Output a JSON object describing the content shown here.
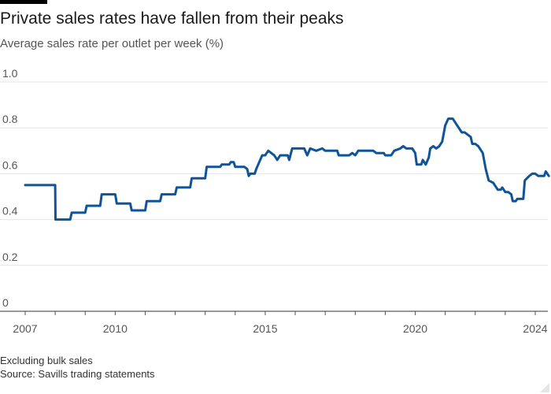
{
  "chart_data": {
    "type": "line",
    "title": "Private sales rates have fallen from their peaks",
    "subtitle": "Average sales rate per outlet per week (%)",
    "xlabel": "",
    "ylabel": "",
    "xlim": [
      2007,
      2024
    ],
    "ylim": [
      0,
      1.0
    ],
    "yticks": [
      0,
      0.2,
      0.4,
      0.6,
      0.8,
      1.0
    ],
    "ytick_labels": [
      "0",
      "0.2",
      "0.4",
      "0.6",
      "0.8",
      "1.0"
    ],
    "xticks": [
      2007,
      2010,
      2015,
      2020,
      2024
    ],
    "xtick_labels": [
      "2007",
      "2010",
      "2015",
      "2020",
      "2024"
    ],
    "grid": true,
    "line_color": "#0f5499",
    "series": [
      {
        "values": [
          [
            2007.0,
            0.55
          ],
          [
            2008.0,
            0.55
          ],
          [
            2008.01,
            0.4
          ],
          [
            2008.5,
            0.4
          ],
          [
            2008.55,
            0.43
          ],
          [
            2009.0,
            0.43
          ],
          [
            2009.05,
            0.46
          ],
          [
            2009.5,
            0.46
          ],
          [
            2009.55,
            0.51
          ],
          [
            2010.0,
            0.51
          ],
          [
            2010.05,
            0.47
          ],
          [
            2010.5,
            0.47
          ],
          [
            2010.55,
            0.44
          ],
          [
            2011.0,
            0.44
          ],
          [
            2011.05,
            0.48
          ],
          [
            2011.5,
            0.48
          ],
          [
            2011.55,
            0.51
          ],
          [
            2012.0,
            0.51
          ],
          [
            2012.05,
            0.54
          ],
          [
            2012.5,
            0.54
          ],
          [
            2012.55,
            0.58
          ],
          [
            2013.0,
            0.58
          ],
          [
            2013.05,
            0.63
          ],
          [
            2013.5,
            0.63
          ],
          [
            2013.55,
            0.64
          ],
          [
            2013.8,
            0.64
          ],
          [
            2013.85,
            0.65
          ],
          [
            2013.95,
            0.65
          ],
          [
            2014.0,
            0.63
          ],
          [
            2014.3,
            0.63
          ],
          [
            2014.4,
            0.62
          ],
          [
            2014.45,
            0.59
          ],
          [
            2014.5,
            0.6
          ],
          [
            2014.65,
            0.6
          ],
          [
            2014.7,
            0.62
          ],
          [
            2014.8,
            0.65
          ],
          [
            2014.9,
            0.68
          ],
          [
            2015.0,
            0.68
          ],
          [
            2015.1,
            0.7
          ],
          [
            2015.3,
            0.68
          ],
          [
            2015.4,
            0.66
          ],
          [
            2015.5,
            0.68
          ],
          [
            2015.75,
            0.68
          ],
          [
            2015.8,
            0.66
          ],
          [
            2015.9,
            0.71
          ],
          [
            2016.3,
            0.71
          ],
          [
            2016.4,
            0.68
          ],
          [
            2016.5,
            0.71
          ],
          [
            2016.7,
            0.7
          ],
          [
            2016.9,
            0.71
          ],
          [
            2017.0,
            0.7
          ],
          [
            2017.4,
            0.7
          ],
          [
            2017.45,
            0.68
          ],
          [
            2017.8,
            0.68
          ],
          [
            2017.9,
            0.69
          ],
          [
            2018.0,
            0.68
          ],
          [
            2018.1,
            0.7
          ],
          [
            2018.6,
            0.7
          ],
          [
            2018.7,
            0.69
          ],
          [
            2018.95,
            0.69
          ],
          [
            2019.0,
            0.68
          ],
          [
            2019.2,
            0.68
          ],
          [
            2019.3,
            0.7
          ],
          [
            2019.5,
            0.71
          ],
          [
            2019.6,
            0.72
          ],
          [
            2019.7,
            0.71
          ],
          [
            2019.9,
            0.71
          ],
          [
            2020.0,
            0.69
          ],
          [
            2020.05,
            0.64
          ],
          [
            2020.2,
            0.64
          ],
          [
            2020.25,
            0.66
          ],
          [
            2020.35,
            0.64
          ],
          [
            2020.45,
            0.67
          ],
          [
            2020.5,
            0.71
          ],
          [
            2020.6,
            0.72
          ],
          [
            2020.7,
            0.71
          ],
          [
            2020.8,
            0.72
          ],
          [
            2020.9,
            0.74
          ],
          [
            2021.0,
            0.81
          ],
          [
            2021.1,
            0.84
          ],
          [
            2021.25,
            0.84
          ],
          [
            2021.35,
            0.82
          ],
          [
            2021.45,
            0.8
          ],
          [
            2021.55,
            0.78
          ],
          [
            2021.65,
            0.78
          ],
          [
            2021.75,
            0.77
          ],
          [
            2021.85,
            0.76
          ],
          [
            2021.9,
            0.73
          ],
          [
            2022.0,
            0.73
          ],
          [
            2022.1,
            0.72
          ],
          [
            2022.25,
            0.69
          ],
          [
            2022.35,
            0.62
          ],
          [
            2022.45,
            0.57
          ],
          [
            2022.6,
            0.56
          ],
          [
            2022.75,
            0.53
          ],
          [
            2022.85,
            0.53
          ],
          [
            2022.9,
            0.54
          ],
          [
            2023.0,
            0.52
          ],
          [
            2023.1,
            0.52
          ],
          [
            2023.2,
            0.51
          ],
          [
            2023.25,
            0.48
          ],
          [
            2023.35,
            0.48
          ],
          [
            2023.4,
            0.49
          ],
          [
            2023.6,
            0.49
          ],
          [
            2023.65,
            0.57
          ],
          [
            2023.8,
            0.59
          ],
          [
            2023.9,
            0.6
          ],
          [
            2024.0,
            0.6
          ],
          [
            2024.1,
            0.59
          ],
          [
            2024.3,
            0.59
          ],
          [
            2024.35,
            0.61
          ],
          [
            2024.45,
            0.59
          ]
        ]
      }
    ]
  },
  "notes": {
    "line1": "Excluding bulk sales",
    "line2": "Source: Savills trading statements"
  }
}
